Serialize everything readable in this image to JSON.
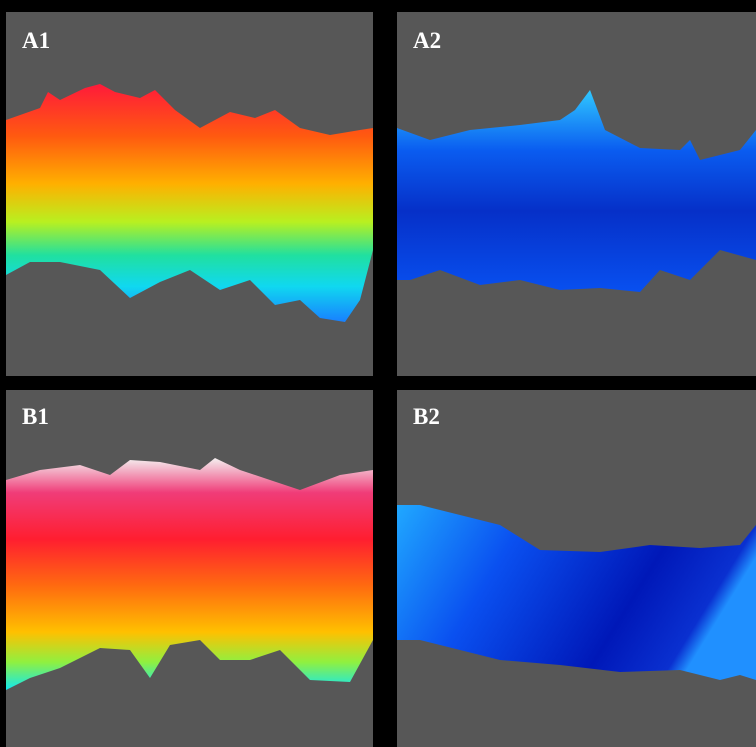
{
  "panels": [
    {
      "label": "A1"
    },
    {
      "label": "A2"
    },
    {
      "label": "B1"
    },
    {
      "label": "B2"
    }
  ]
}
